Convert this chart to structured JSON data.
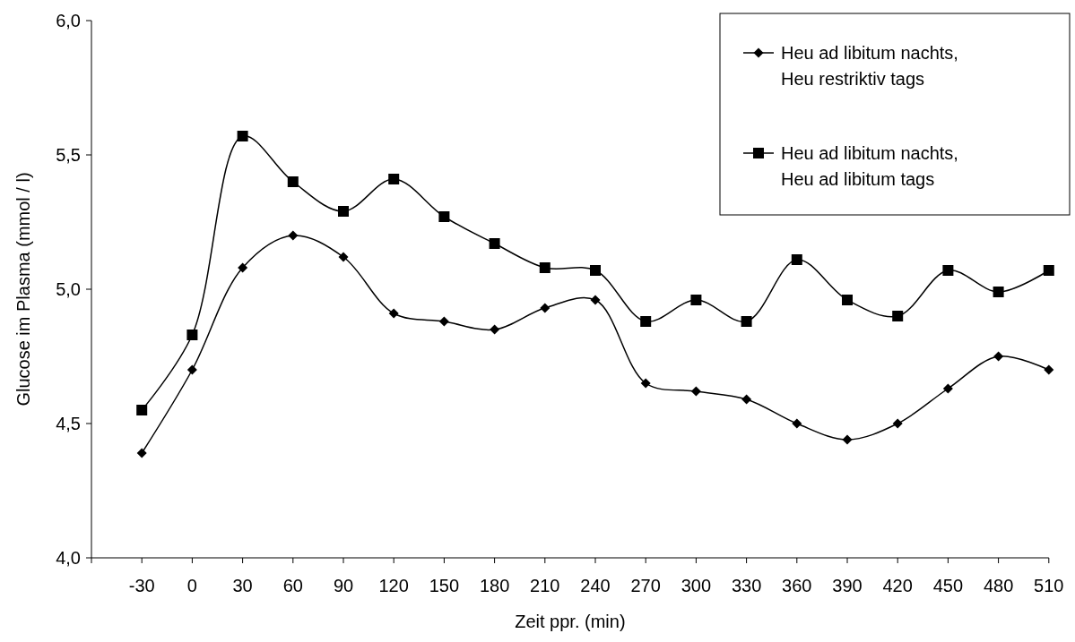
{
  "chart_data": {
    "type": "line",
    "xlabel": "Zeit ppr. (min)",
    "ylabel": "Glucose im Plasma (mmol / l)",
    "categories": [
      "-30",
      "0",
      "30",
      "60",
      "90",
      "120",
      "150",
      "180",
      "210",
      "240",
      "270",
      "300",
      "330",
      "360",
      "390",
      "420",
      "450",
      "480",
      "510"
    ],
    "series": [
      {
        "name": "Heu ad libitum nachts,\nHeu restriktiv tags",
        "color": "#000000",
        "marker": "diamond",
        "values": [
          4.39,
          4.7,
          5.08,
          5.2,
          5.12,
          4.91,
          4.88,
          4.85,
          4.93,
          4.96,
          4.65,
          4.62,
          4.59,
          4.5,
          4.44,
          4.5,
          4.63,
          4.75,
          4.7
        ]
      },
      {
        "name": "Heu ad libitum nachts,\nHeu ad libitum tags",
        "color": "#000000",
        "marker": "square",
        "values": [
          4.55,
          4.83,
          5.57,
          5.4,
          5.29,
          5.41,
          5.27,
          5.17,
          5.08,
          5.07,
          4.88,
          4.96,
          4.88,
          5.11,
          4.96,
          4.9,
          5.07,
          4.99,
          5.07
        ]
      }
    ],
    "ylim": [
      4,
      6
    ],
    "yticks": [
      {
        "value": 4,
        "label": "4,0"
      },
      {
        "value": 4.5,
        "label": "4,5"
      },
      {
        "value": 5,
        "label": "5,0"
      },
      {
        "value": 5.5,
        "label": "5,5"
      },
      {
        "value": 6,
        "label": "6,0"
      }
    ],
    "grid": false,
    "legend": "top right",
    "line_style": "solid"
  }
}
